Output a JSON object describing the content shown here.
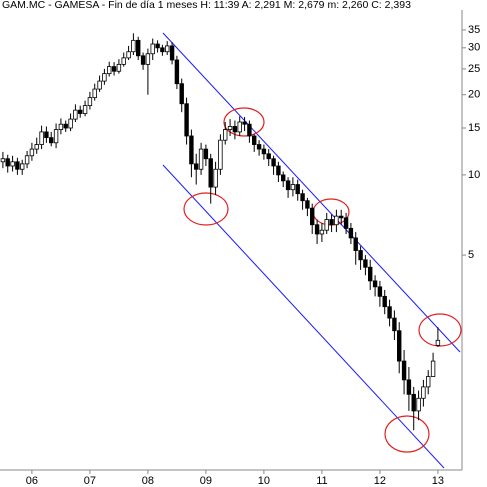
{
  "chart_data": {
    "type": "candlestick",
    "title": "GAM.MC - GAMESA - Fin de día 1 meses  H: 11:39  A: 2,291  M: 2,679  m: 2,260  C: 2,393",
    "x": [
      2005.5,
      2005.583,
      2005.667,
      2005.75,
      2005.833,
      2005.917,
      2006,
      2006.083,
      2006.167,
      2006.25,
      2006.333,
      2006.417,
      2006.5,
      2006.583,
      2006.667,
      2006.75,
      2006.833,
      2006.917,
      2007,
      2007.083,
      2007.167,
      2007.25,
      2007.333,
      2007.417,
      2007.5,
      2007.583,
      2007.667,
      2007.75,
      2007.833,
      2007.917,
      2008,
      2008.083,
      2008.167,
      2008.25,
      2008.333,
      2008.417,
      2008.5,
      2008.583,
      2008.667,
      2008.75,
      2008.833,
      2008.917,
      2009,
      2009.083,
      2009.167,
      2009.25,
      2009.333,
      2009.417,
      2009.5,
      2009.583,
      2009.667,
      2009.75,
      2009.833,
      2009.917,
      2010,
      2010.083,
      2010.167,
      2010.25,
      2010.333,
      2010.417,
      2010.5,
      2010.583,
      2010.667,
      2010.75,
      2010.833,
      2010.917,
      2011,
      2011.083,
      2011.167,
      2011.25,
      2011.333,
      2011.417,
      2011.5,
      2011.583,
      2011.667,
      2011.75,
      2011.833,
      2011.917,
      2012,
      2012.083,
      2012.167,
      2012.25,
      2012.333,
      2012.417,
      2012.5,
      2012.583,
      2012.667,
      2012.75,
      2012.833,
      2012.917,
      2013
    ],
    "open": [
      11.2,
      11.5,
      10.8,
      11.2,
      10.5,
      11.0,
      11.8,
      12.5,
      13.0,
      14.5,
      13.8,
      13.2,
      14.8,
      15.5,
      15.0,
      16.2,
      17.5,
      17.0,
      18.2,
      19.5,
      21.0,
      22.5,
      24.0,
      25.5,
      24.5,
      26.0,
      27.5,
      29.0,
      32.0,
      28.0,
      26.0,
      28.5,
      31.0,
      30.0,
      29.0,
      30.5,
      27.0,
      22.0,
      18.5,
      14.0,
      11.0,
      10.5,
      12.5,
      11.5,
      9.0,
      10.5,
      13.5,
      14.8,
      15.2,
      14.5,
      15.8,
      15.5,
      14.0,
      13.0,
      12.5,
      12.0,
      11.5,
      10.8,
      10.0,
      9.5,
      8.8,
      9.2,
      8.5,
      8.0,
      7.5,
      6.5,
      6.0,
      6.2,
      6.8,
      6.5,
      7.0,
      6.9,
      6.3,
      5.8,
      5.2,
      4.8,
      4.5,
      4.0,
      3.8,
      3.5,
      3.2,
      2.9,
      2.6,
      2.0,
      1.7,
      1.5,
      1.3,
      1.45,
      1.6,
      1.75,
      2.291
    ],
    "high": [
      12.2,
      11.9,
      11.8,
      11.6,
      11.4,
      12.3,
      13.2,
      13.8,
      15.3,
      15.2,
      14.5,
      15.6,
      16.3,
      16.0,
      17.0,
      18.4,
      18.2,
      19.0,
      20.5,
      22.0,
      23.6,
      25.0,
      26.6,
      26.5,
      27.2,
      28.8,
      30.5,
      34.0,
      33.0,
      28.8,
      29.8,
      32.5,
      32.0,
      30.8,
      31.8,
      31.5,
      28.0,
      23.0,
      19.5,
      14.8,
      12.0,
      13.2,
      13.0,
      12.0,
      11.2,
      14.2,
      15.8,
      16.2,
      16.0,
      16.6,
      16.5,
      16.0,
      14.2,
      13.5,
      13.0,
      12.5,
      11.8,
      11.2,
      10.3,
      9.8,
      9.8,
      9.6,
      8.8,
      8.2,
      7.8,
      6.8,
      6.6,
      7.2,
      7.1,
      7.4,
      7.4,
      7.2,
      6.6,
      6.1,
      5.4,
      5.0,
      4.8,
      4.2,
      4.0,
      3.7,
      3.4,
      3.1,
      2.8,
      2.2,
      1.9,
      1.6,
      1.55,
      1.7,
      1.85,
      2.15,
      2.679
    ],
    "low": [
      10.6,
      10.2,
      10.3,
      10.0,
      10.0,
      10.6,
      11.3,
      12.0,
      12.5,
      13.2,
      12.8,
      12.6,
      14.2,
      14.5,
      14.6,
      15.8,
      16.4,
      16.6,
      17.6,
      19.0,
      20.5,
      21.8,
      23.4,
      23.6,
      24.0,
      25.5,
      27.0,
      28.2,
      27.0,
      24.8,
      20.0,
      27.0,
      28.8,
      28.0,
      28.2,
      26.0,
      21.0,
      17.2,
      13.0,
      9.8,
      9.2,
      10.0,
      10.8,
      7.8,
      8.4,
      10.0,
      13.0,
      14.0,
      13.6,
      14.0,
      14.6,
      13.2,
      12.2,
      11.8,
      11.4,
      10.8,
      10.0,
      9.4,
      9.0,
      8.2,
      8.3,
      8.0,
      7.4,
      7.0,
      6.0,
      5.5,
      5.6,
      6.0,
      6.1,
      6.1,
      6.5,
      6.0,
      5.5,
      4.6,
      4.4,
      4.2,
      3.7,
      3.5,
      3.2,
      3.0,
      2.7,
      2.4,
      1.8,
      1.5,
      1.3,
      1.1,
      1.2,
      1.35,
      1.5,
      1.75,
      2.26
    ],
    "close": [
      11.5,
      10.8,
      11.2,
      10.5,
      11.0,
      11.8,
      12.5,
      13.0,
      14.5,
      13.8,
      13.2,
      14.8,
      15.5,
      15.0,
      16.2,
      17.5,
      17.0,
      18.2,
      19.5,
      21.0,
      22.5,
      24.0,
      25.5,
      24.5,
      26.0,
      27.5,
      29.0,
      32.0,
      28.0,
      26.0,
      28.5,
      31.0,
      30.0,
      29.0,
      30.5,
      27.0,
      22.0,
      18.5,
      14.0,
      11.0,
      10.5,
      12.5,
      11.5,
      9.0,
      10.5,
      13.5,
      14.8,
      15.2,
      14.5,
      15.8,
      15.5,
      14.0,
      13.0,
      12.5,
      12.0,
      11.5,
      10.8,
      10.0,
      9.5,
      8.8,
      9.2,
      8.5,
      8.0,
      7.5,
      6.5,
      6.0,
      6.2,
      6.8,
      6.5,
      7.0,
      6.9,
      6.3,
      5.8,
      5.2,
      4.8,
      4.5,
      4.0,
      3.8,
      3.5,
      3.2,
      2.9,
      2.6,
      2.0,
      1.7,
      1.5,
      1.3,
      1.45,
      1.6,
      1.75,
      2.0,
      2.393
    ],
    "up_color": "#ffffff",
    "down_color": "#000000",
    "xlim": [
      2005.45,
      2013.45
    ],
    "xticks": [
      {
        "value": 2006,
        "label": "06"
      },
      {
        "value": 2007,
        "label": "07"
      },
      {
        "value": 2008,
        "label": "08"
      },
      {
        "value": 2009,
        "label": "09"
      },
      {
        "value": 2010,
        "label": "10"
      },
      {
        "value": 2011,
        "label": "11"
      },
      {
        "value": 2012,
        "label": "12"
      },
      {
        "value": 2013,
        "label": "13"
      }
    ],
    "ylim": [
      0.78,
      41.6
    ],
    "log_y": true,
    "yticks": [
      5,
      10,
      15,
      20,
      25,
      30,
      35
    ]
  }
}
